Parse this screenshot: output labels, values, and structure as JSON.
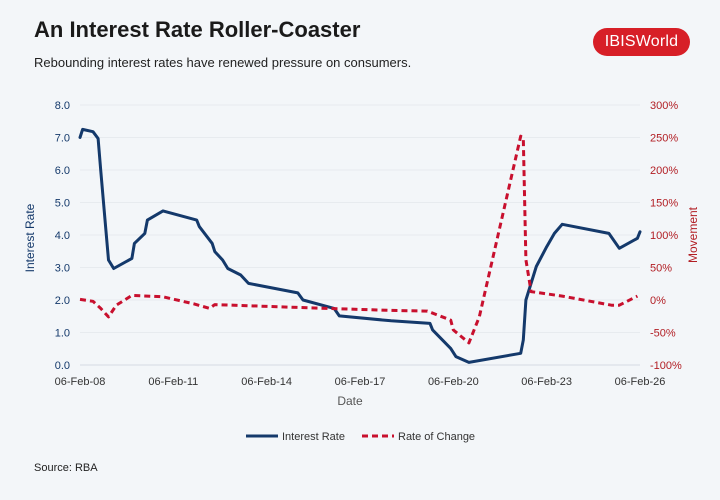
{
  "header": {
    "title": "An Interest Rate Roller-Coaster",
    "subtitle": "Rebounding interest rates have renewed pressure on consumers."
  },
  "logo": {
    "text": "IBISWorld",
    "color": "#d71f27"
  },
  "source": "Source: RBA",
  "chart_data": {
    "type": "line",
    "xlabel": "Date",
    "ylabel": "Interest Rate",
    "y2label": "Movement",
    "xlim": [
      "2008-02",
      "2026-02"
    ],
    "xticks": [
      "06-Feb-08",
      "06-Feb-11",
      "06-Feb-14",
      "06-Feb-17",
      "06-Feb-20",
      "06-Feb-23",
      "06-Feb-26"
    ],
    "ylim": [
      0,
      8
    ],
    "yticks": [
      "0.0",
      "1.0",
      "2.0",
      "3.0",
      "4.0",
      "5.0",
      "6.0",
      "7.0",
      "8.0"
    ],
    "y2lim": [
      -100,
      300
    ],
    "y2ticks": [
      "-100%",
      "-50%",
      "0%",
      "50%",
      "100%",
      "150%",
      "200%",
      "250%",
      "300%"
    ],
    "grid": true,
    "legend": "bottom",
    "series": [
      {
        "name": "Interest Rate",
        "axis": "left",
        "color": "#14396b",
        "style": "solid",
        "points": [
          [
            "2008-02",
            7.0
          ],
          [
            "2008-03",
            7.25
          ],
          [
            "2008-07",
            7.18
          ],
          [
            "2008-09",
            6.97
          ],
          [
            "2008-10",
            6.0
          ],
          [
            "2008-12",
            4.15
          ],
          [
            "2009-01",
            3.23
          ],
          [
            "2009-03",
            2.97
          ],
          [
            "2009-10",
            3.28
          ],
          [
            "2009-11",
            3.74
          ],
          [
            "2010-03",
            4.05
          ],
          [
            "2010-04",
            4.46
          ],
          [
            "2010-10",
            4.74
          ],
          [
            "2011-11",
            4.46
          ],
          [
            "2011-12",
            4.26
          ],
          [
            "2012-05",
            3.74
          ],
          [
            "2012-06",
            3.49
          ],
          [
            "2012-09",
            3.23
          ],
          [
            "2012-11",
            2.97
          ],
          [
            "2013-04",
            2.77
          ],
          [
            "2013-07",
            2.51
          ],
          [
            "2015-02",
            2.22
          ],
          [
            "2015-04",
            2.0
          ],
          [
            "2016-04",
            1.74
          ],
          [
            "2016-06",
            1.51
          ],
          [
            "2018-02",
            1.36
          ],
          [
            "2019-05",
            1.28
          ],
          [
            "2019-06",
            1.08
          ],
          [
            "2020-01",
            0.51
          ],
          [
            "2020-03",
            0.26
          ],
          [
            "2020-08",
            0.08
          ],
          [
            "2022-04",
            0.36
          ],
          [
            "2022-05",
            0.77
          ],
          [
            "2022-06",
            2.0
          ],
          [
            "2022-10",
            3.03
          ],
          [
            "2023-02",
            3.64
          ],
          [
            "2023-05",
            4.05
          ],
          [
            "2023-08",
            4.33
          ],
          [
            "2025-02",
            4.05
          ],
          [
            "2025-06",
            3.59
          ],
          [
            "2026-01",
            3.9
          ],
          [
            "2026-02",
            4.1
          ]
        ]
      },
      {
        "name": "Rate of Change",
        "axis": "right",
        "color": "#c8102e",
        "style": "dashed",
        "points": [
          [
            "2008-02",
            1
          ],
          [
            "2008-07",
            -2
          ],
          [
            "2008-10",
            -13
          ],
          [
            "2009-01",
            -26
          ],
          [
            "2009-04",
            -8
          ],
          [
            "2009-10",
            7
          ],
          [
            "2010-10",
            5
          ],
          [
            "2011-10",
            -6
          ],
          [
            "2012-04",
            -13
          ],
          [
            "2012-06",
            -7
          ],
          [
            "2016-01",
            -13
          ],
          [
            "2018-02",
            -16
          ],
          [
            "2019-04",
            -17
          ],
          [
            "2020-01",
            -31
          ],
          [
            "2020-02",
            -46
          ],
          [
            "2020-08",
            -66
          ],
          [
            "2020-12",
            -26
          ],
          [
            "2022-04",
            252
          ],
          [
            "2022-05",
            249
          ],
          [
            "2022-06",
            62
          ],
          [
            "2022-08",
            13
          ],
          [
            "2023-08",
            6
          ],
          [
            "2025-03",
            -8
          ],
          [
            "2025-06",
            -8
          ],
          [
            "2026-01",
            6
          ]
        ]
      }
    ]
  }
}
